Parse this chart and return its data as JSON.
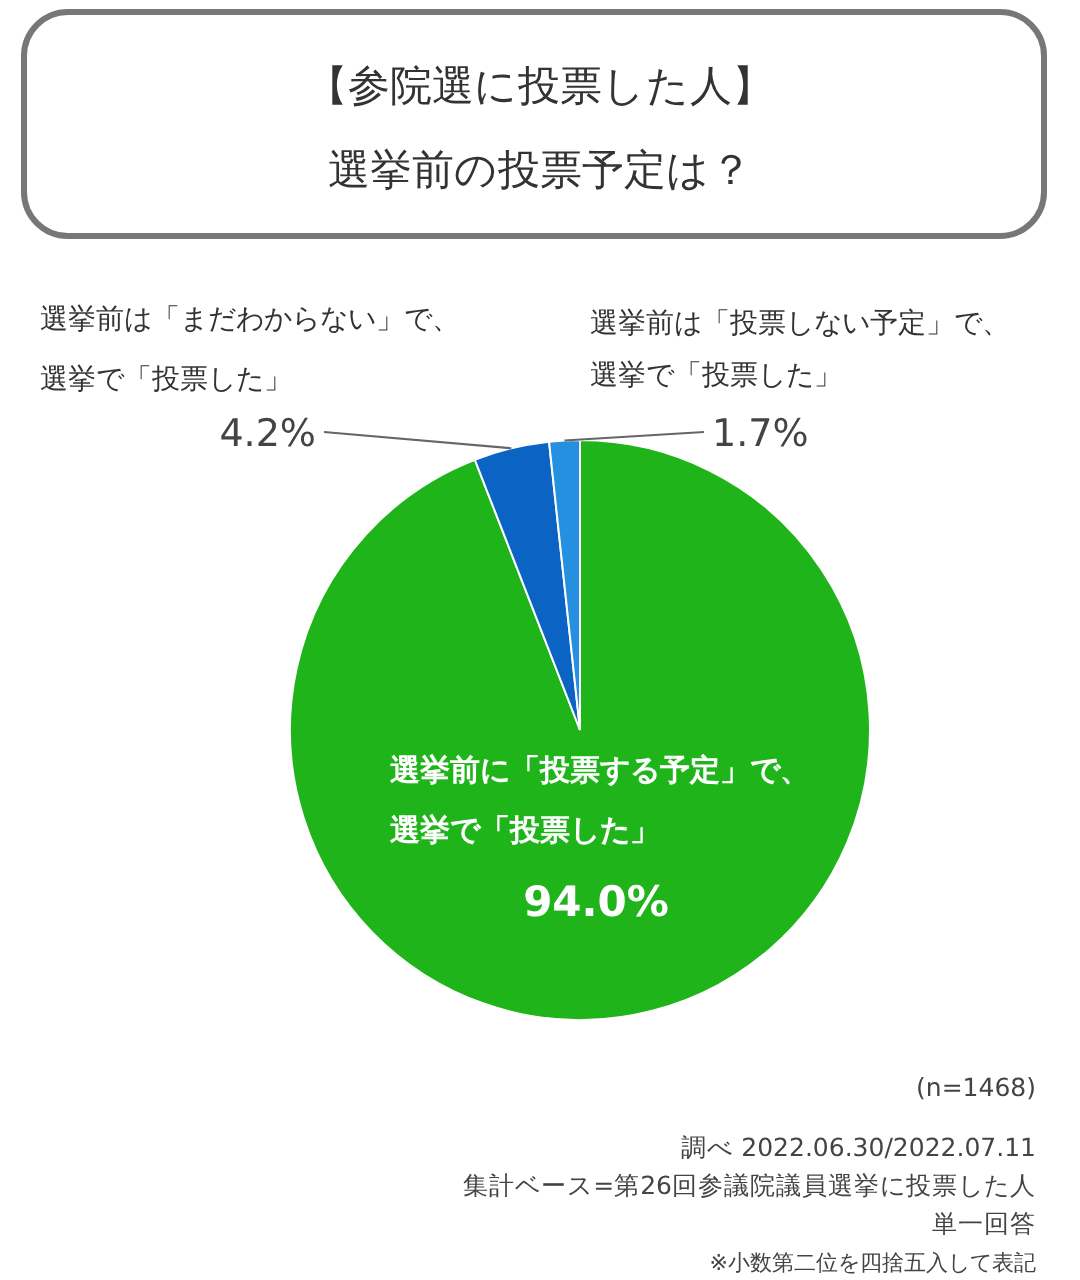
{
  "chart_data": {
    "type": "pie",
    "title": "【参院選に投票した人】",
    "subtitle": "選挙前の投票予定は？",
    "categories": [
      "選挙前に「投票する予定」で、選挙で「投票した」",
      "選挙前は「まだわからない」で、選挙で「投票した」",
      "選挙前は「投票しない予定」で、選挙で「投票した」"
    ],
    "values": [
      94.0,
      4.2,
      1.7
    ],
    "colors": [
      "#1fb51a",
      "#0b63c4",
      "#2590e0"
    ],
    "value_labels": [
      "94.0%",
      "4.2%",
      "1.7%"
    ],
    "annotations": [
      "(n=1468)",
      "調べ 2022.06.30/2022.07.11",
      "集計ベース=第26回参議院議員選挙に投票した人",
      "単一回答",
      "※小数第二位を四捨五入して表記"
    ]
  }
}
